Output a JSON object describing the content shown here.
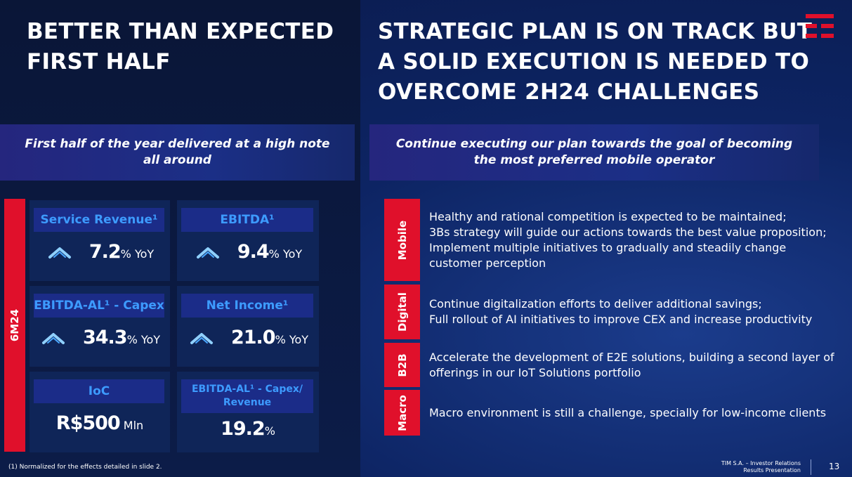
{
  "left": {
    "title": [
      "BETTER THAN EXPECTED",
      "FIRST HALF"
    ],
    "banner": "First half of the year delivered at a high note all around",
    "period": "6M24",
    "kpis": [
      {
        "title": "Service Revenue¹",
        "value": "7.2",
        "unit": "% YoY",
        "arrow": true
      },
      {
        "title": "EBITDA¹",
        "value": "9.4",
        "unit": "% YoY",
        "arrow": true
      },
      {
        "title": "EBITDA-AL¹ - Capex",
        "value": "34.3",
        "unit": "% YoY",
        "arrow": true
      },
      {
        "title": "Net Income¹",
        "value": "21.0",
        "unit": "% YoY",
        "arrow": true
      },
      {
        "title": "IoC",
        "value": "R$500",
        "unit": " Mln",
        "arrow": false
      },
      {
        "title": "EBITDA-AL¹ - Capex/ Revenue",
        "value": "19.2",
        "unit": "%",
        "arrow": false
      }
    ],
    "footnote": "(1)    Normalized for the effects detailed in slide 2."
  },
  "right": {
    "title": [
      "STRATEGIC PLAN IS ON TRACK BUT",
      "A SOLID EXECUTION IS NEEDED TO",
      "OVERCOME 2H24 CHALLENGES"
    ],
    "banner": "Continue executing our plan towards the goal of becoming the most preferred mobile operator",
    "rows": [
      {
        "label": "Mobile",
        "lines": [
          "Healthy and rational competition is expected to be maintained;",
          "3Bs strategy will guide our actions towards the best value proposition;",
          "Implement multiple initiatives to gradually and steadily change customer perception"
        ]
      },
      {
        "label": "Digital",
        "lines": [
          "Continue digitalization efforts to deliver additional savings;",
          "Full rollout of AI initiatives to improve CEX and increase productivity"
        ]
      },
      {
        "label": "B2B",
        "lines": [
          "Accelerate the development of E2E solutions, building a second layer of offerings in our IoT Solutions portfolio"
        ]
      },
      {
        "label": "Macro",
        "lines": [
          "Macro environment is still a challenge, specially for low-income clients"
        ]
      }
    ]
  },
  "footer": {
    "company": "TIM S.A. – Investor Relations",
    "doc": "Results Presentation",
    "page": "13"
  }
}
